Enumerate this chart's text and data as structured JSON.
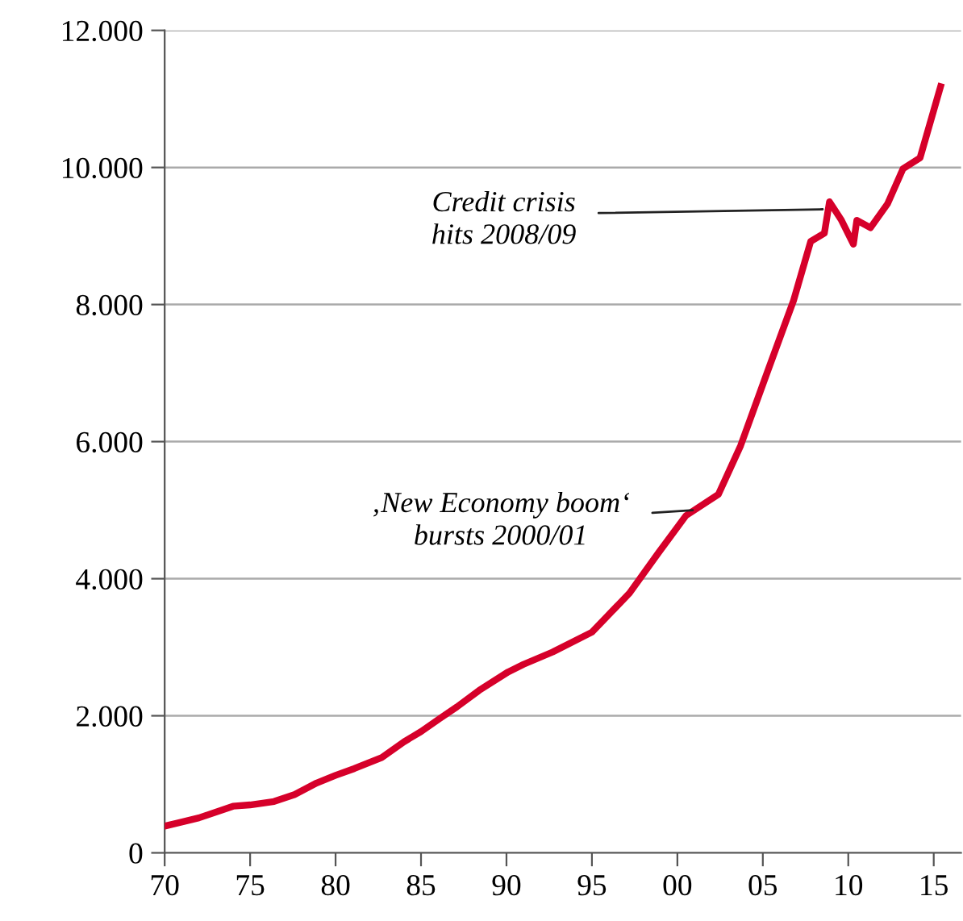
{
  "chart_data": {
    "type": "line",
    "x": [
      1970,
      1972,
      1974,
      1975,
      1976.4,
      1977.6,
      1978.9,
      1980,
      1981.1,
      1982.7,
      1984,
      1985,
      1986.1,
      1987.1,
      1988.4,
      1990.1,
      1991,
      1992.7,
      1995,
      1997.2,
      1998.9,
      2000.5,
      2002.4,
      2003.7,
      2005.3,
      2006.8,
      2007.8,
      2008.6,
      2008.9,
      2009.6,
      2010.3,
      2010.5,
      2011.3,
      2012.3,
      2013.2,
      2014.2,
      2015.4
    ],
    "series": [
      {
        "color": "#d6002a",
        "values": [
          390,
          510,
          680,
          700,
          750,
          850,
          1020,
          1130,
          1230,
          1390,
          1620,
          1770,
          1960,
          2130,
          2370,
          2640,
          2750,
          2930,
          3220,
          3790,
          4380,
          4920,
          5230,
          5940,
          7040,
          8060,
          8920,
          9040,
          9500,
          9230,
          8880,
          9230,
          9120,
          9470,
          9980,
          10140,
          11180
        ]
      }
    ],
    "xlim": [
      1970,
      2016.6
    ],
    "xticks": [
      {
        "value": 1970,
        "label": "70"
      },
      {
        "value": 1975,
        "label": "75"
      },
      {
        "value": 1980,
        "label": "80"
      },
      {
        "value": 1985,
        "label": "85"
      },
      {
        "value": 1990,
        "label": "90"
      },
      {
        "value": 1995,
        "label": "95"
      },
      {
        "value": 2000,
        "label": "00"
      },
      {
        "value": 2005,
        "label": "05"
      },
      {
        "value": 2010,
        "label": "10"
      },
      {
        "value": 2015,
        "label": "15"
      }
    ],
    "ylim": [
      0,
      12000
    ],
    "yticks": [
      0,
      {
        "value": 2000,
        "label": "2.000"
      },
      {
        "value": 4000,
        "label": "4.000"
      },
      {
        "value": 6000,
        "label": "6.000"
      },
      {
        "value": 8000,
        "label": "8.000"
      },
      {
        "value": 10000,
        "label": "10.000"
      },
      {
        "value": 12000,
        "label": "12.000"
      }
    ],
    "grid": "y",
    "legend": false,
    "marker": "none",
    "line_style": "solid",
    "annotations": [
      {
        "text": "Credit crisis\nhits 2008/09",
        "x": 2008.5,
        "y": 9390
      },
      {
        "text": "‚New Economy boom‘\nbursts 2000/01",
        "x": 2000.9,
        "y": 5000
      }
    ]
  }
}
